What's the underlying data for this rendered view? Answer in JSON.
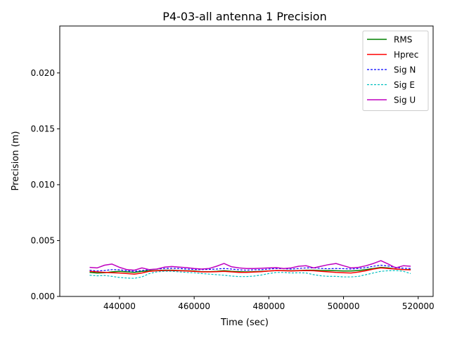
{
  "chart_data": {
    "type": "line",
    "title": "P4-03-all antenna 1 Precision",
    "xlabel": "Time (sec)",
    "ylabel": "Precision (m)",
    "xlim": [
      424000,
      524000
    ],
    "ylim": [
      0,
      0.0242
    ],
    "x_ticks": [
      440000,
      460000,
      480000,
      500000,
      520000
    ],
    "x_tick_labels": [
      "440000",
      "460000",
      "480000",
      "500000",
      "520000"
    ],
    "y_ticks": [
      0,
      0.005,
      0.01,
      0.015,
      0.02
    ],
    "y_tick_labels": [
      "0.000",
      "0.005",
      "0.010",
      "0.015",
      "0.020"
    ],
    "grid": false,
    "legend_position": "top-right",
    "x": [
      432000,
      434000,
      436000,
      438000,
      440000,
      442000,
      444000,
      446000,
      448000,
      450000,
      452000,
      454000,
      456000,
      458000,
      460000,
      462000,
      464000,
      466000,
      468000,
      470000,
      472000,
      474000,
      476000,
      478000,
      480000,
      482000,
      484000,
      486000,
      488000,
      490000,
      492000,
      494000,
      496000,
      498000,
      500000,
      502000,
      504000,
      506000,
      508000,
      510000,
      512000,
      514000,
      516000,
      518000
    ],
    "series": [
      {
        "name": "RMS",
        "color": "#008000",
        "dash": "solid",
        "width": 1.5,
        "values": [
          0.00215,
          0.0021,
          0.00212,
          0.0022,
          0.00225,
          0.0022,
          0.00215,
          0.00225,
          0.0023,
          0.00232,
          0.00235,
          0.00235,
          0.00232,
          0.0023,
          0.00228,
          0.00222,
          0.00222,
          0.00225,
          0.0023,
          0.00225,
          0.00222,
          0.0022,
          0.00222,
          0.00225,
          0.00228,
          0.00232,
          0.00232,
          0.0023,
          0.00232,
          0.00235,
          0.00235,
          0.00232,
          0.00232,
          0.0023,
          0.00228,
          0.00228,
          0.00232,
          0.0024,
          0.0025,
          0.0026,
          0.00255,
          0.00245,
          0.0024,
          0.0024
        ]
      },
      {
        "name": "Hprec",
        "color": "#ff0000",
        "dash": "solid",
        "width": 1.5,
        "values": [
          0.00225,
          0.0022,
          0.00215,
          0.00212,
          0.0021,
          0.00205,
          0.002,
          0.0021,
          0.00225,
          0.0023,
          0.00232,
          0.00232,
          0.0023,
          0.00228,
          0.00225,
          0.0022,
          0.0022,
          0.00222,
          0.00225,
          0.0022,
          0.00215,
          0.00215,
          0.00218,
          0.00222,
          0.00228,
          0.00232,
          0.0023,
          0.00228,
          0.0023,
          0.00232,
          0.0023,
          0.00225,
          0.0022,
          0.00215,
          0.00212,
          0.0021,
          0.00218,
          0.0023,
          0.00245,
          0.00255,
          0.0025,
          0.00245,
          0.0024,
          0.00238
        ]
      },
      {
        "name": "Sig N",
        "color": "#0000ff",
        "dash": "3,2",
        "width": 1.2,
        "values": [
          0.00235,
          0.00228,
          0.00232,
          0.0024,
          0.00238,
          0.0023,
          0.00225,
          0.00232,
          0.0024,
          0.00245,
          0.0025,
          0.00252,
          0.0025,
          0.00245,
          0.00242,
          0.0024,
          0.00242,
          0.00245,
          0.0025,
          0.00245,
          0.00238,
          0.00235,
          0.00238,
          0.0024,
          0.00245,
          0.0025,
          0.00248,
          0.00245,
          0.0025,
          0.00255,
          0.00255,
          0.0025,
          0.00248,
          0.0025,
          0.00248,
          0.00245,
          0.0025,
          0.00258,
          0.0027,
          0.0028,
          0.00272,
          0.0026,
          0.00252,
          0.0025
        ]
      },
      {
        "name": "Sig E",
        "color": "#00bfbf",
        "dash": "3,2",
        "width": 1.2,
        "values": [
          0.0019,
          0.00185,
          0.00188,
          0.0018,
          0.0017,
          0.00165,
          0.00162,
          0.00175,
          0.00205,
          0.0022,
          0.00225,
          0.00225,
          0.0022,
          0.00215,
          0.00212,
          0.00205,
          0.002,
          0.00195,
          0.0019,
          0.00182,
          0.00178,
          0.00178,
          0.00182,
          0.00192,
          0.00205,
          0.00215,
          0.00215,
          0.0021,
          0.00212,
          0.0021,
          0.00195,
          0.00185,
          0.0018,
          0.0018,
          0.00175,
          0.00175,
          0.0018,
          0.00195,
          0.0021,
          0.00225,
          0.0023,
          0.00232,
          0.00225,
          0.00205
        ]
      },
      {
        "name": "Sig U",
        "color": "#bf00bf",
        "dash": "solid",
        "width": 1.5,
        "values": [
          0.0026,
          0.00255,
          0.0028,
          0.0029,
          0.0026,
          0.0024,
          0.00235,
          0.00255,
          0.0024,
          0.00245,
          0.00262,
          0.00268,
          0.00262,
          0.00258,
          0.0025,
          0.00245,
          0.0025,
          0.0027,
          0.00295,
          0.00265,
          0.00255,
          0.0025,
          0.0025,
          0.00252,
          0.00255,
          0.00258,
          0.0025,
          0.00255,
          0.0027,
          0.00275,
          0.00255,
          0.0027,
          0.00285,
          0.00295,
          0.00275,
          0.00255,
          0.0026,
          0.00275,
          0.00295,
          0.0032,
          0.0029,
          0.00255,
          0.00275,
          0.0027
        ]
      }
    ]
  }
}
